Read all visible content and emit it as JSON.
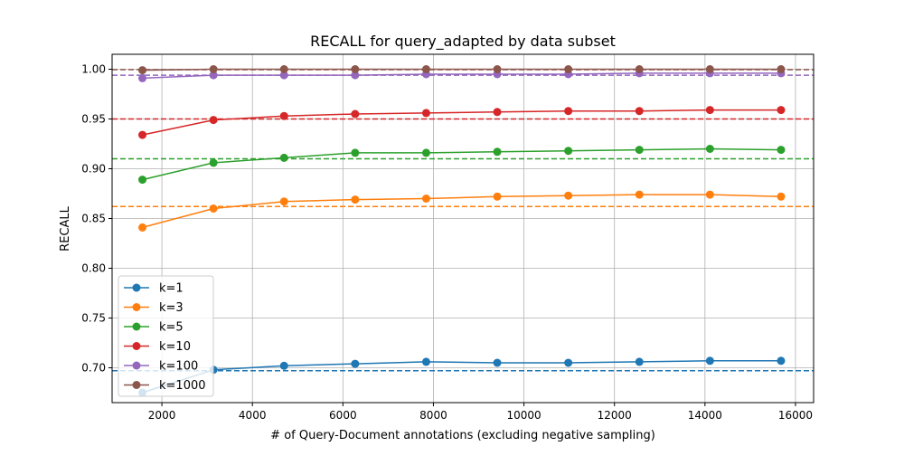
{
  "chart_data": {
    "type": "line",
    "title": "RECALL for query_adapted by data subset",
    "xlabel": "# of Query-Document annotations (excluding negative sampling)",
    "ylabel": "RECALL",
    "xlim": [
      900,
      16400
    ],
    "ylim": [
      0.665,
      1.015
    ],
    "xticks": [
      2000,
      4000,
      6000,
      8000,
      10000,
      12000,
      14000,
      16000
    ],
    "xtick_labels": [
      "2000",
      "4000",
      "6000",
      "8000",
      "10000",
      "12000",
      "14000",
      "16000"
    ],
    "yticks": [
      0.7,
      0.75,
      0.8,
      0.85,
      0.9,
      0.95,
      1.0
    ],
    "ytick_labels": [
      "0.70",
      "0.75",
      "0.80",
      "0.85",
      "0.90",
      "0.95",
      "1.00"
    ],
    "grid": true,
    "legend_position": "lower-left",
    "x": [
      1570,
      3140,
      4700,
      6270,
      7840,
      9410,
      10980,
      12550,
      14110,
      15680
    ],
    "series": [
      {
        "name": "k=1",
        "color": "#1f77b4",
        "values": [
          0.675,
          0.698,
          0.702,
          0.704,
          0.706,
          0.705,
          0.705,
          0.706,
          0.707,
          0.707
        ],
        "baseline": 0.697
      },
      {
        "name": "k=3",
        "color": "#ff7f0e",
        "values": [
          0.841,
          0.86,
          0.867,
          0.869,
          0.87,
          0.872,
          0.873,
          0.874,
          0.874,
          0.872
        ],
        "baseline": 0.862
      },
      {
        "name": "k=5",
        "color": "#2ca02c",
        "values": [
          0.889,
          0.906,
          0.911,
          0.916,
          0.916,
          0.917,
          0.918,
          0.919,
          0.92,
          0.919
        ],
        "baseline": 0.91
      },
      {
        "name": "k=10",
        "color": "#d62728",
        "values": [
          0.934,
          0.949,
          0.953,
          0.955,
          0.956,
          0.957,
          0.958,
          0.958,
          0.959,
          0.959
        ],
        "baseline": 0.95
      },
      {
        "name": "k=100",
        "color": "#9467bd",
        "values": [
          0.991,
          0.994,
          0.994,
          0.994,
          0.995,
          0.995,
          0.995,
          0.996,
          0.996,
          0.996
        ],
        "baseline": 0.994
      },
      {
        "name": "k=1000",
        "color": "#8c564b",
        "values": [
          0.999,
          1.0,
          1.0,
          1.0,
          1.0,
          1.0,
          1.0,
          1.0,
          1.0,
          1.0
        ],
        "baseline": 0.9995
      }
    ]
  }
}
